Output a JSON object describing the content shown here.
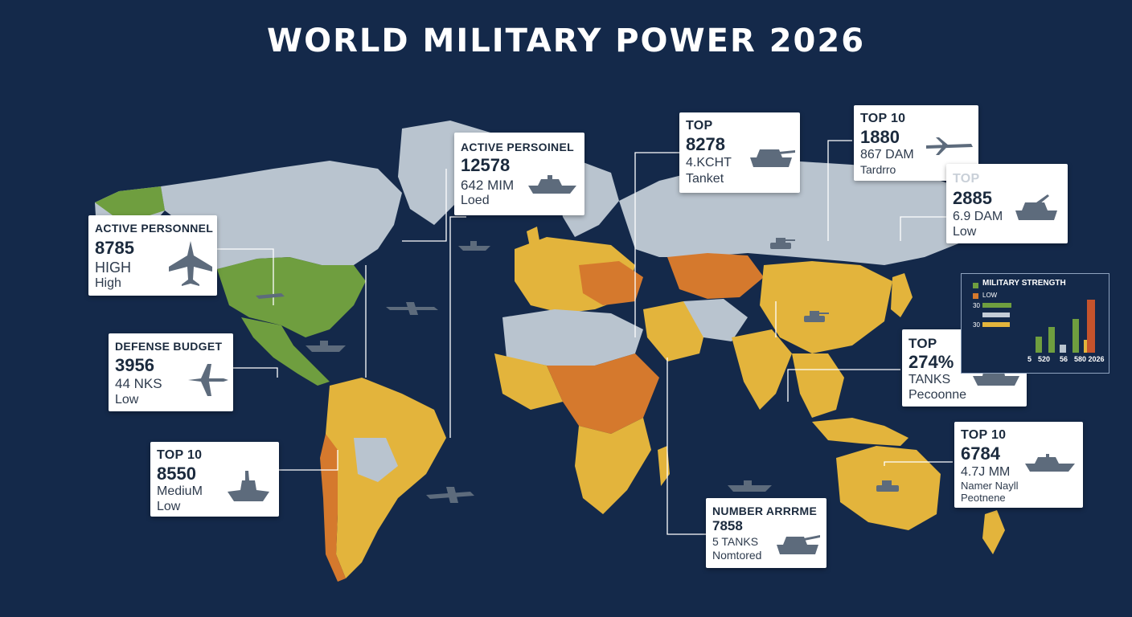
{
  "title": "WORLD MILITARY POWER 2026",
  "colors": {
    "background": "#14294a",
    "land_gray": "#b9c4cf",
    "high_green": "#6f9e3f",
    "medium_yellow": "#e3b43c",
    "orange": "#d5792d",
    "red": "#c5532c",
    "leader_line": "#ffffff"
  },
  "cards": {
    "north_america": {
      "line1": "ACTIVE PERSONNEL",
      "line2": "8785",
      "line3": "HIGH",
      "line4": "High",
      "icon": "fighter-jet-icon"
    },
    "defense_budget": {
      "line1": "DEFENSE BUDGET",
      "line2": "3956",
      "line3": "44 NKS",
      "line4": "Low",
      "icon": "aircraft-icon"
    },
    "south_america": {
      "line1": "TOP 10",
      "line2": "8550",
      "line3": "MediuM",
      "line4": "Low",
      "icon": "warship-icon"
    },
    "europe": {
      "line1": "ACTIVE PERSOINEL",
      "line2": "12578",
      "line3": "642 MIM",
      "line4": "Loed",
      "icon": "warship-icon"
    },
    "russia_tank": {
      "line1": "TOP",
      "line2": "8278",
      "line3": "4.KCHT",
      "line4": "Tanket",
      "icon": "tank-icon"
    },
    "top10_air": {
      "line1": "TOP 10",
      "line2": "1880",
      "line3": "867 DAM",
      "line4": "Tardrro",
      "icon": "bomber-icon"
    },
    "east_asia": {
      "line1": "TOP",
      "line2": "2885",
      "line3": "6.9 DAM",
      "line4": "Low",
      "icon": "tank-icon"
    },
    "southeast_asia": {
      "line1": "TOP",
      "line2": "274%",
      "line3": "TANKS",
      "line4": "Pecoonne",
      "icon": "warship-icon"
    },
    "oceania": {
      "line1": "TOP 10",
      "line2": "6784",
      "line3": "4.7J MM",
      "line4": "Namer Nayll",
      "line5": "Peotnene",
      "icon": "warship-icon"
    },
    "africa_armor": {
      "line1": "NUMBER ARRRME",
      "line2": "7858",
      "line3": "5 TANKS",
      "line4": "Nomtored",
      "icon": "tank-icon"
    }
  },
  "legend": {
    "title": "MILITARY STRENGTH",
    "rows": [
      {
        "label": "LOW",
        "color": "#e3b43c"
      },
      {
        "label": "30",
        "color": "#6f9e3f"
      },
      {
        "label": "30",
        "color": "#e3b43c"
      }
    ],
    "x_labels": [
      "5",
      "520",
      "56",
      "580 2026"
    ]
  }
}
